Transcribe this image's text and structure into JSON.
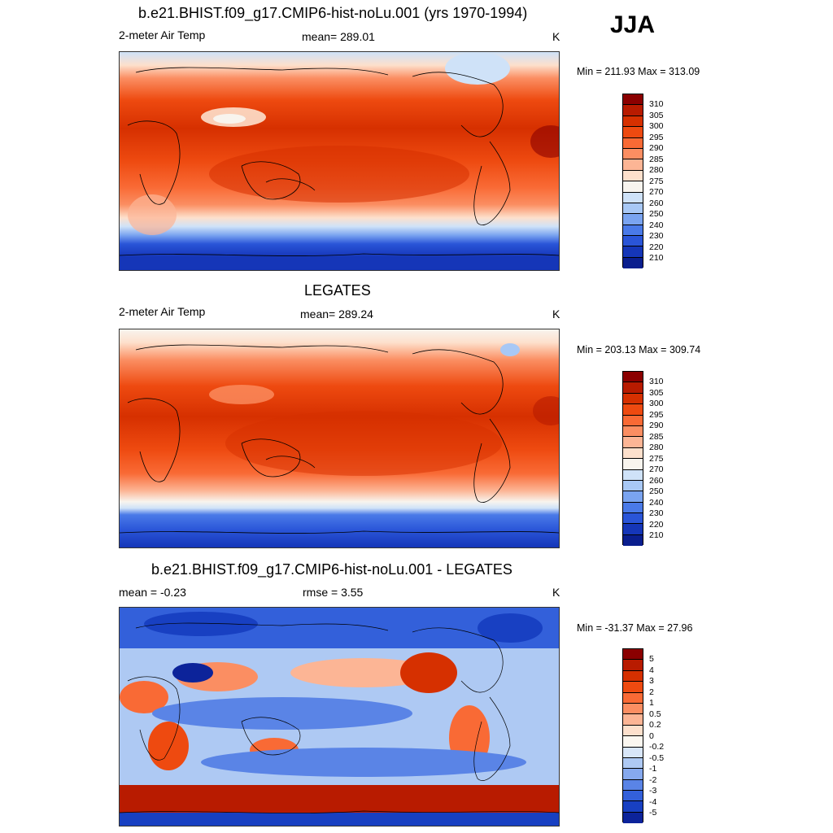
{
  "season": "JJA",
  "panels": [
    {
      "title": "b.e21.BHIST.f09_g17.CMIP6-hist-noLu.001 (yrs 1970-1994)",
      "left_label": "2-meter Air Temp",
      "center_label": "mean= 289.01",
      "units": "K",
      "minmax": "Min = 211.93 Max = 313.09",
      "colorbar_labels": [
        "310",
        "305",
        "300",
        "295",
        "290",
        "285",
        "280",
        "275",
        "270",
        "260",
        "250",
        "240",
        "230",
        "220",
        "210"
      ]
    },
    {
      "title": "LEGATES",
      "left_label": "2-meter Air Temp",
      "center_label": "mean= 289.24",
      "units": "K",
      "minmax": "Min = 203.13 Max = 309.74",
      "colorbar_labels": [
        "310",
        "305",
        "300",
        "295",
        "290",
        "285",
        "280",
        "275",
        "270",
        "260",
        "250",
        "240",
        "230",
        "220",
        "210"
      ]
    },
    {
      "title": "b.e21.BHIST.f09_g17.CMIP6-hist-noLu.001 - LEGATES",
      "left_label": "mean =  -0.23",
      "center_label": "rmse =   3.55",
      "units": "K",
      "minmax": "Min = -31.37 Max =  27.96",
      "colorbar_labels": [
        "5",
        "4",
        "3",
        "2",
        "1",
        "0.5",
        "0.2",
        "0",
        "-0.2",
        "-0.5",
        "-1",
        "-2",
        "-3",
        "-4",
        "-5"
      ]
    }
  ],
  "colors": {
    "temp_scale": [
      "#8b0000",
      "#b81b00",
      "#d63000",
      "#ee4a10",
      "#f96a35",
      "#fb8e62",
      "#fcb595",
      "#fde0cc",
      "#f8f4ee",
      "#cfe2f8",
      "#a8c8f5",
      "#7aa4f0",
      "#4a7ae8",
      "#2a55d8",
      "#1536b8",
      "#0a1e8e"
    ],
    "diff_scale": [
      "#8b0000",
      "#b81b00",
      "#d63000",
      "#ee4a10",
      "#f96a35",
      "#fb8e62",
      "#fcb595",
      "#fde0cc",
      "#fbf7f0",
      "#d8e6f8",
      "#aec9f3",
      "#86a9ee",
      "#5a84e6",
      "#3360da",
      "#1840c2",
      "#0c239a"
    ]
  }
}
